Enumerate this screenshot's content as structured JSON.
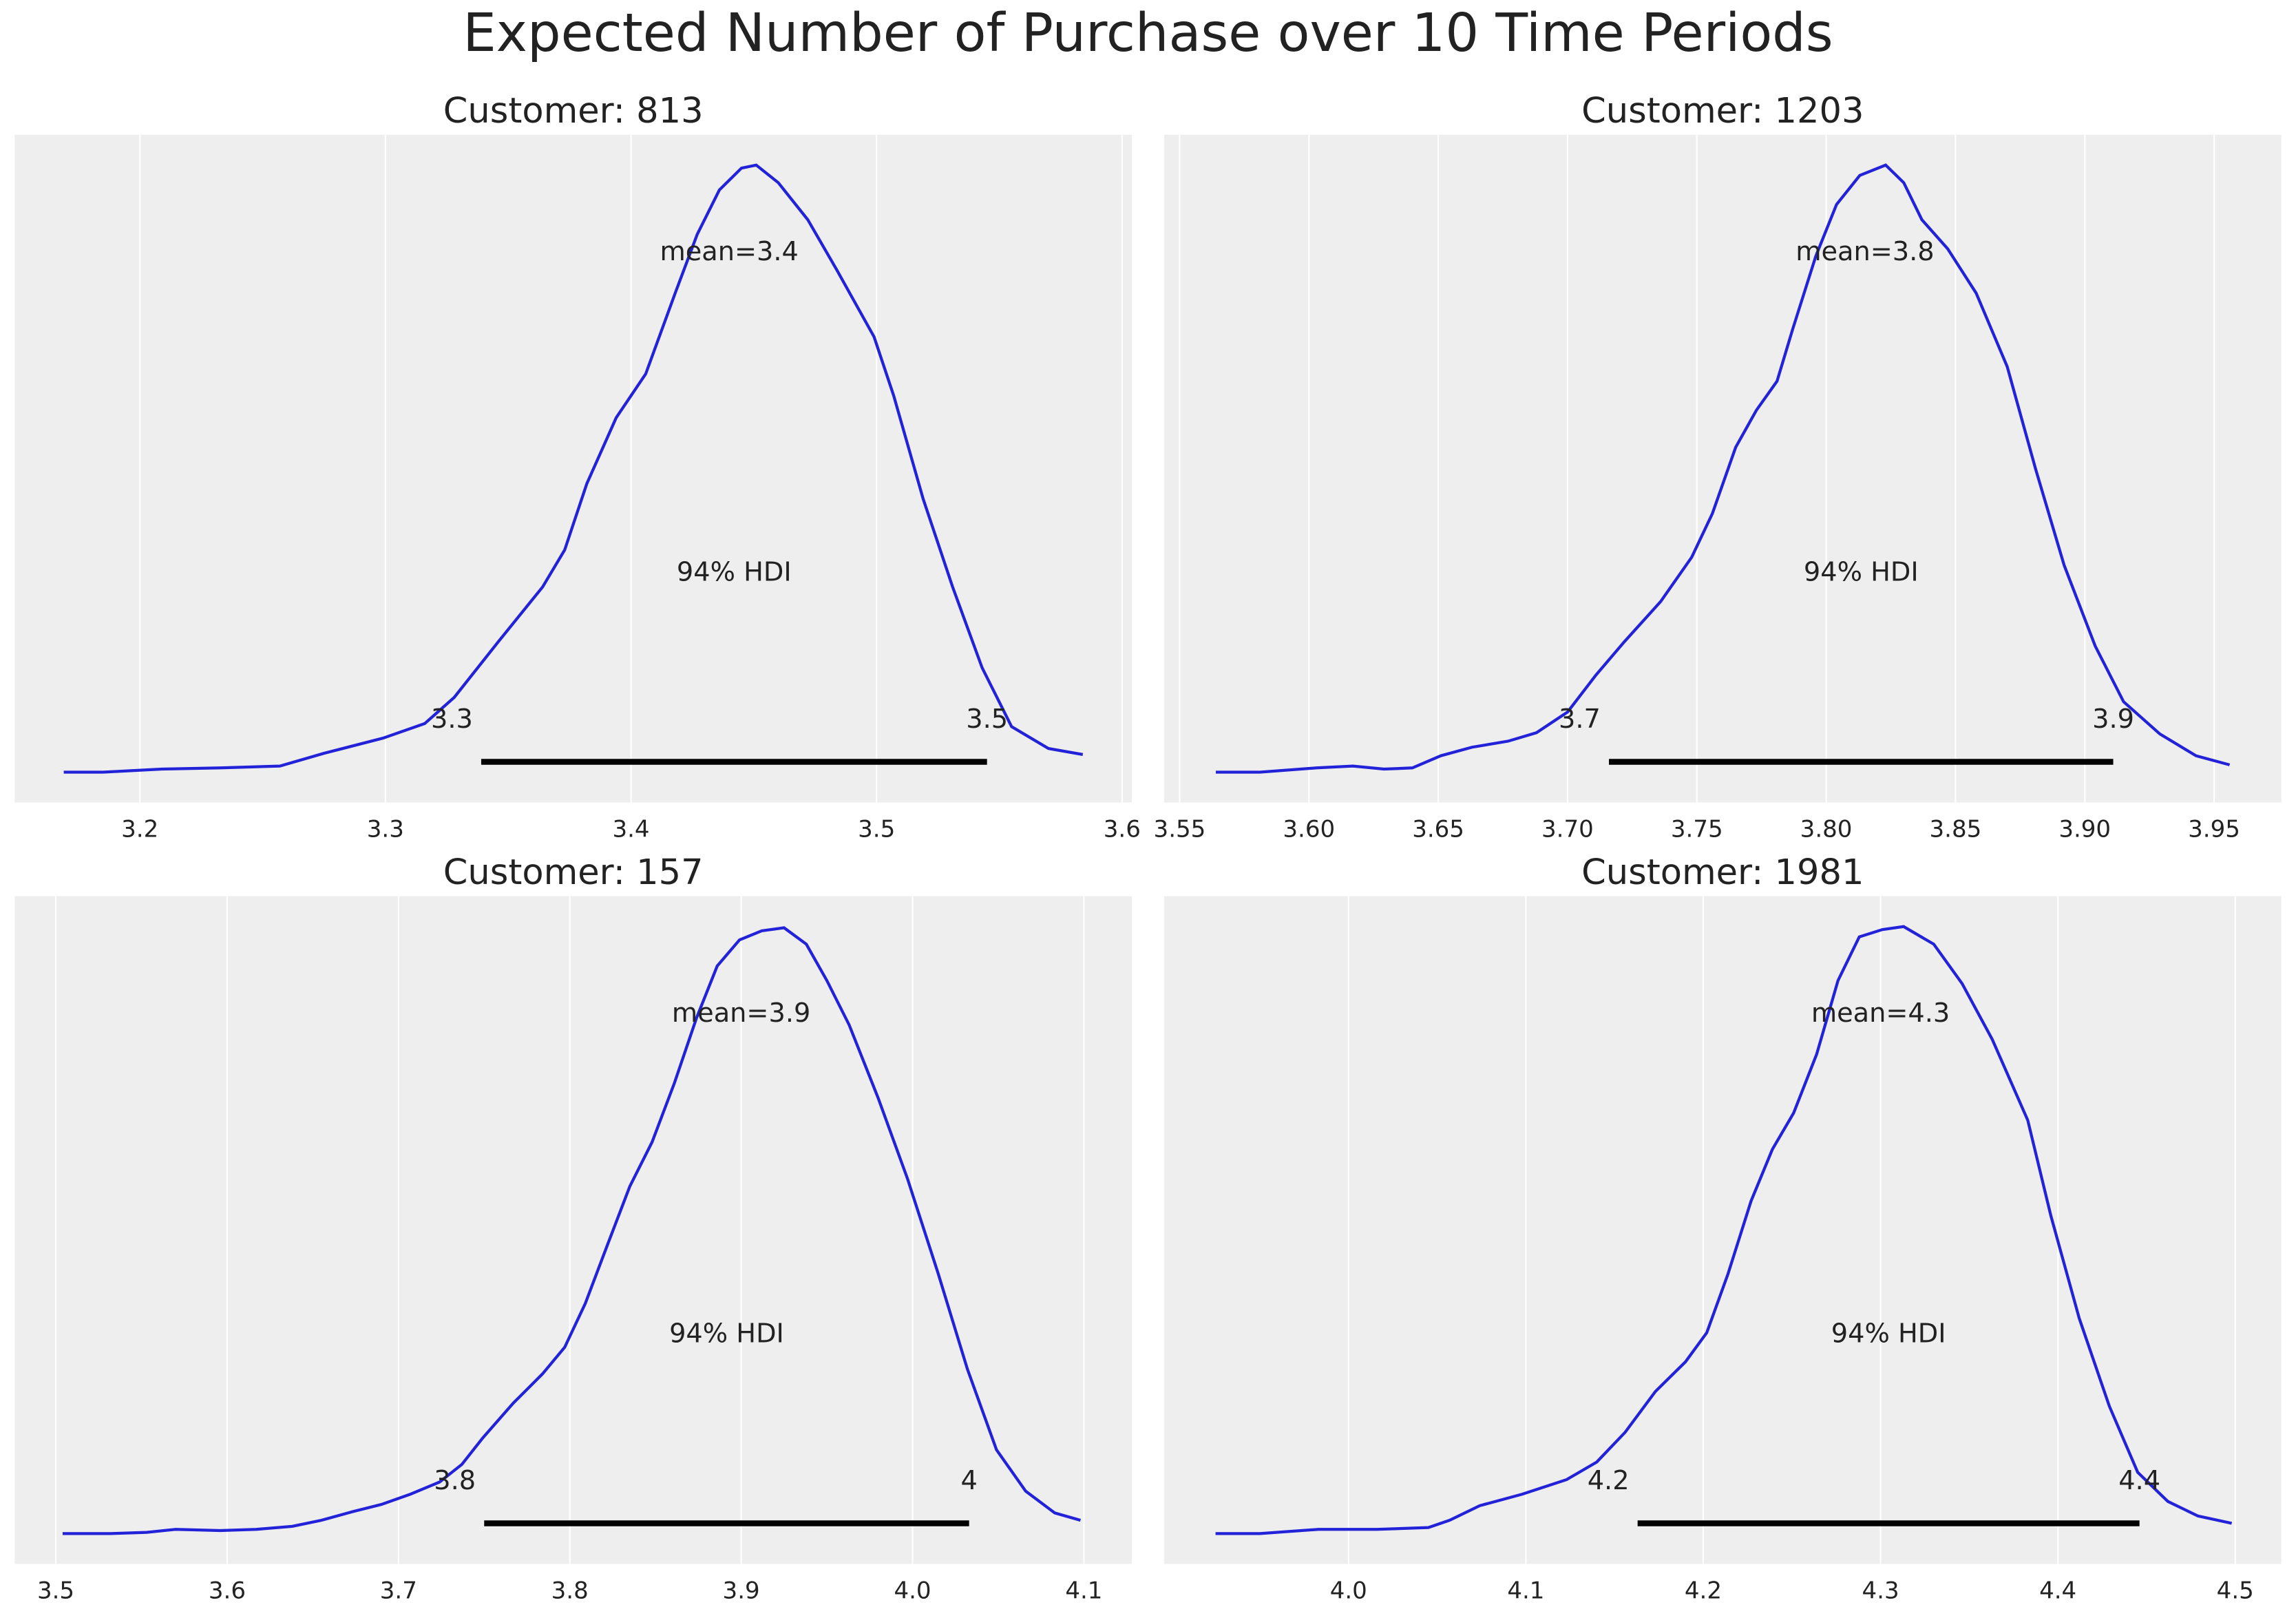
{
  "title": "Expected Number of Purchase over 10 Time Periods",
  "chart_data": [
    {
      "type": "density",
      "title": "Customer: 813",
      "color": "#2222d8",
      "grid": true,
      "x": [
        3.169,
        3.185,
        3.209,
        3.233,
        3.257,
        3.275,
        3.299,
        3.316,
        3.328,
        3.346,
        3.364,
        3.373,
        3.382,
        3.394,
        3.406,
        3.418,
        3.427,
        3.436,
        3.445,
        3.451,
        3.46,
        3.472,
        3.484,
        3.499,
        3.507,
        3.519,
        3.531,
        3.543,
        3.555,
        3.57,
        3.584
      ],
      "values": [
        0,
        0,
        0.005,
        0.007,
        0.01,
        0.031,
        0.056,
        0.08,
        0.123,
        0.215,
        0.305,
        0.366,
        0.475,
        0.584,
        0.656,
        0.789,
        0.886,
        0.959,
        0.995,
        1.0,
        0.971,
        0.91,
        0.826,
        0.717,
        0.62,
        0.45,
        0.305,
        0.172,
        0.075,
        0.039,
        0.029
      ],
      "xlim": [
        3.149,
        3.604
      ],
      "xticks": [
        3.2,
        3.3,
        3.4,
        3.5,
        3.6
      ],
      "ylim": [
        -0.05,
        1.05
      ],
      "mean": 3.44,
      "mean_label": "mean=3.4",
      "hdi_label": "94% HDI",
      "hdi": {
        "values": [
          3.339,
          3.545
        ],
        "value_labels": [
          "3.3",
          "3.5"
        ]
      }
    },
    {
      "type": "density",
      "title": "Customer: 1203",
      "color": "#2222d8",
      "grid": true,
      "x": [
        3.564,
        3.581,
        3.603,
        3.617,
        3.629,
        3.64,
        3.651,
        3.663,
        3.677,
        3.688,
        3.7,
        3.711,
        3.722,
        3.736,
        3.748,
        3.756,
        3.765,
        3.773,
        3.781,
        3.787,
        3.796,
        3.804,
        3.813,
        3.823,
        3.83,
        3.837,
        3.847,
        3.858,
        3.87,
        3.881,
        3.892,
        3.904,
        3.915,
        3.929,
        3.943,
        3.956
      ],
      "values": [
        0,
        0,
        0.007,
        0.01,
        0.005,
        0.007,
        0.027,
        0.041,
        0.051,
        0.065,
        0.099,
        0.16,
        0.215,
        0.281,
        0.354,
        0.426,
        0.535,
        0.596,
        0.644,
        0.729,
        0.85,
        0.935,
        0.983,
        1.0,
        0.971,
        0.91,
        0.862,
        0.789,
        0.668,
        0.499,
        0.341,
        0.208,
        0.116,
        0.063,
        0.027,
        0.012
      ],
      "xlim": [
        3.544,
        3.976
      ],
      "xticks": [
        3.55,
        {
          "value": 3.6,
          "label": "3.60"
        },
        3.65,
        {
          "value": 3.7,
          "label": "3.70"
        },
        3.75,
        {
          "value": 3.8,
          "label": "3.80"
        },
        3.85,
        {
          "value": 3.9,
          "label": "3.90"
        },
        3.95
      ],
      "ylim": [
        -0.05,
        1.05
      ],
      "mean": 3.815,
      "mean_label": "mean=3.8",
      "hdi_label": "94% HDI",
      "hdi": {
        "values": [
          3.716,
          3.911
        ],
        "value_labels": [
          "3.7",
          "3.9"
        ]
      }
    },
    {
      "type": "density",
      "title": "Customer: 157",
      "color": "#2222d8",
      "grid": true,
      "x": [
        3.504,
        3.532,
        3.553,
        3.57,
        3.596,
        3.617,
        3.638,
        3.655,
        3.673,
        3.69,
        3.707,
        3.724,
        3.737,
        3.749,
        3.767,
        3.784,
        3.797,
        3.809,
        3.822,
        3.835,
        3.848,
        3.861,
        3.874,
        3.886,
        3.899,
        3.912,
        3.925,
        3.938,
        3.95,
        3.963,
        3.98,
        3.997,
        4.015,
        4.032,
        4.049,
        4.066,
        4.083,
        4.098
      ],
      "values": [
        0,
        0,
        0.002,
        0.007,
        0.005,
        0.007,
        0.012,
        0.022,
        0.036,
        0.048,
        0.065,
        0.085,
        0.114,
        0.157,
        0.215,
        0.263,
        0.307,
        0.379,
        0.476,
        0.572,
        0.645,
        0.742,
        0.85,
        0.935,
        0.978,
        0.993,
        0.998,
        0.971,
        0.911,
        0.838,
        0.717,
        0.585,
        0.428,
        0.271,
        0.138,
        0.07,
        0.034,
        0.022
      ],
      "xlim": [
        3.476,
        4.128
      ],
      "xticks": [
        3.5,
        3.6,
        3.7,
        3.8,
        3.9,
        {
          "value": 4.0,
          "label": "4.0"
        },
        4.1
      ],
      "ylim": [
        -0.05,
        1.05
      ],
      "mean": 3.9,
      "mean_label": "mean=3.9",
      "hdi_label": "94% HDI",
      "hdi": {
        "values": [
          3.75,
          4.033
        ],
        "value_labels": [
          "3.8",
          "4"
        ]
      }
    },
    {
      "type": "density",
      "title": "Customer: 1981",
      "color": "#2222d8",
      "grid": true,
      "x": [
        3.925,
        3.95,
        3.983,
        4.016,
        4.045,
        4.057,
        4.074,
        4.098,
        4.123,
        4.14,
        4.156,
        4.173,
        4.19,
        4.202,
        4.214,
        4.227,
        4.239,
        4.251,
        4.264,
        4.276,
        4.288,
        4.301,
        4.313,
        4.33,
        4.346,
        4.363,
        4.383,
        4.396,
        4.412,
        4.429,
        4.445,
        4.462,
        4.479,
        4.498
      ],
      "values": [
        0,
        0,
        0.007,
        0.007,
        0.01,
        0.022,
        0.046,
        0.065,
        0.089,
        0.118,
        0.167,
        0.234,
        0.283,
        0.331,
        0.428,
        0.548,
        0.633,
        0.693,
        0.79,
        0.911,
        0.983,
        0.995,
        1.0,
        0.971,
        0.906,
        0.814,
        0.681,
        0.524,
        0.355,
        0.21,
        0.101,
        0.053,
        0.029,
        0.017
      ],
      "xlim": [
        3.896,
        4.526
      ],
      "xticks": [
        {
          "value": 4.0,
          "label": "4.0"
        },
        4.1,
        4.2,
        4.3,
        4.4,
        4.5
      ],
      "ylim": [
        -0.05,
        1.05
      ],
      "mean": 4.3,
      "mean_label": "mean=4.3",
      "hdi_label": "94% HDI",
      "hdi": {
        "values": [
          4.163,
          4.446
        ],
        "value_labels": [
          "4.2",
          "4.4"
        ]
      }
    }
  ]
}
